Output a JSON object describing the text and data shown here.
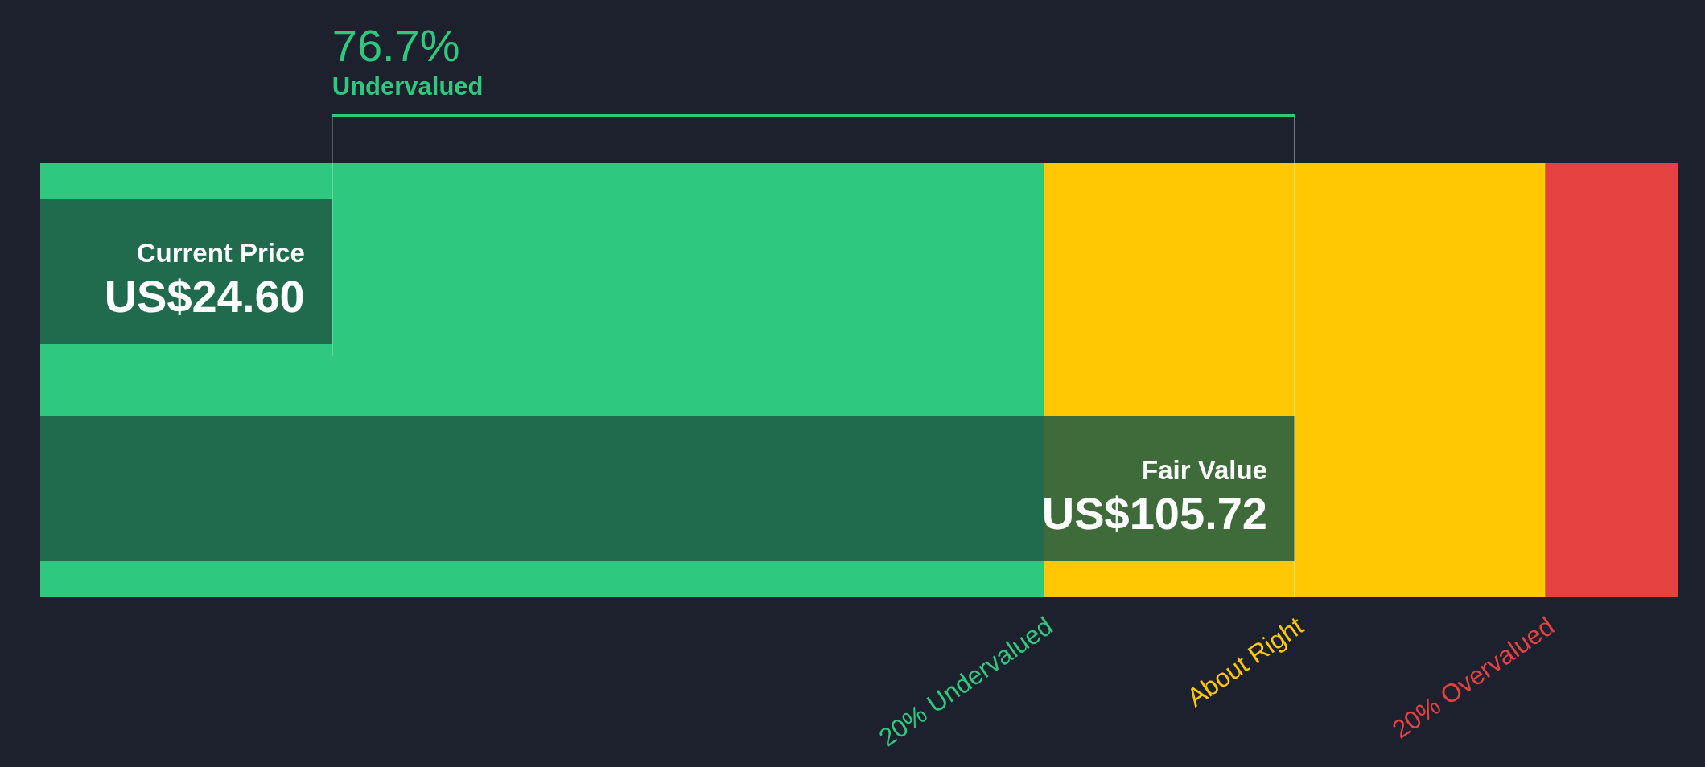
{
  "chart_data": {
    "type": "bar",
    "orientation": "horizontal",
    "categories": [
      "Current Price",
      "Fair Value"
    ],
    "values": [
      24.6,
      105.72
    ],
    "value_labels": [
      "US$24.60",
      "US$105.72"
    ],
    "colors": [
      "#1d5a44",
      "#1d5a44"
    ],
    "xlim": [
      0,
      138
    ],
    "bands": [
      {
        "axis": "x",
        "from": 0,
        "to": 84.58,
        "label": "20% Undervalued",
        "color": "#2ec97f"
      },
      {
        "axis": "x",
        "from": 84.58,
        "to": 126.86,
        "label": "About Right",
        "color": "#ffc803"
      },
      {
        "axis": "x",
        "from": 126.86,
        "to": 138,
        "label": "20% Overvalued",
        "color": "#e54141"
      }
    ],
    "annotations": [
      "76.7%",
      "Undervalued"
    ]
  }
}
